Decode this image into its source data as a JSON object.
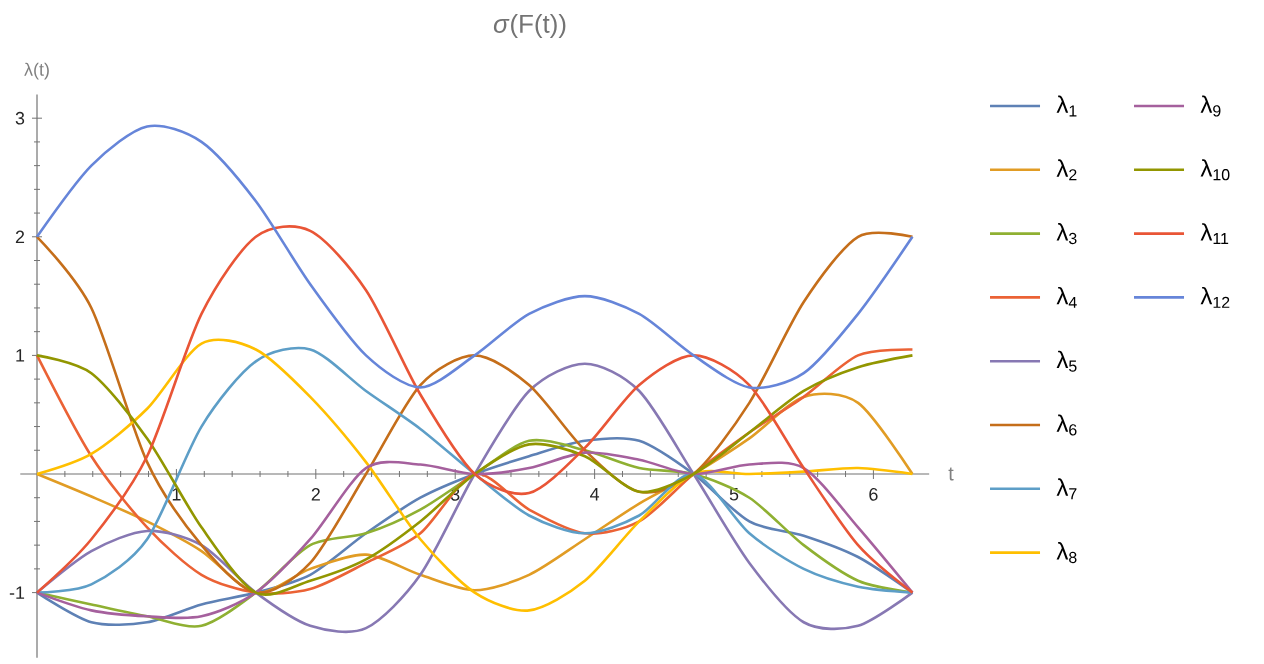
{
  "chart_data": {
    "type": "line",
    "title": "*σ*(F(t))",
    "xlabel": "t",
    "ylabel": "λ(t)",
    "xlim": [
      -0.12,
      6.4
    ],
    "ylim": [
      -1.55,
      3.2
    ],
    "xticks": [
      {
        "value": 0,
        "label": null
      },
      1,
      2,
      3,
      4,
      5,
      6
    ],
    "yticks": [
      -1,
      {
        "value": 0,
        "label": null
      },
      1,
      2,
      3
    ],
    "legend": "right",
    "x": [
      0,
      0.39,
      0.79,
      1.18,
      1.57,
      1.96,
      2.36,
      2.75,
      3.14,
      3.53,
      3.93,
      4.32,
      4.71,
      5.11,
      5.5,
      5.89,
      6.28
    ],
    "series": [
      {
        "name": "λ$_{1}$",
        "color": "#5e81b5",
        "values": [
          -1,
          -1.25,
          -1.25,
          -1.1,
          -1,
          -0.85,
          -0.5,
          -0.2,
          0,
          0.15,
          0.28,
          0.28,
          0,
          -0.4,
          -0.52,
          -0.7,
          -1
        ]
      },
      {
        "name": "λ$_{2}$",
        "color": "#e19c24",
        "values": [
          0,
          -0.19,
          -0.4,
          -0.65,
          -1,
          -0.8,
          -0.68,
          -0.85,
          -0.98,
          -0.85,
          -0.55,
          -0.25,
          0,
          0.3,
          0.65,
          0.6,
          0
        ]
      },
      {
        "name": "λ$_{3}$",
        "color": "#8fb032",
        "values": [
          -1,
          -1.1,
          -1.2,
          -1.28,
          -1,
          -0.6,
          -0.5,
          -0.3,
          0,
          0.28,
          0.2,
          0.05,
          0,
          -0.2,
          -0.6,
          -0.9,
          -1
        ]
      },
      {
        "name": "λ$_{4}$",
        "color": "#eb6235",
        "values": [
          1,
          0.15,
          -0.45,
          -0.85,
          -1,
          -0.97,
          -0.75,
          -0.5,
          0,
          -0.3,
          -0.5,
          -0.4,
          0,
          0.35,
          0.65,
          1.0,
          1.05
        ]
      },
      {
        "name": "λ$_{5}$",
        "color": "#8778b3",
        "values": [
          -1,
          -0.65,
          -0.48,
          -0.6,
          -1,
          -1.28,
          -1.3,
          -0.85,
          0,
          0.7,
          0.93,
          0.7,
          0,
          -0.75,
          -1.25,
          -1.28,
          -1
        ]
      },
      {
        "name": "λ$_{6}$",
        "color": "#c56e1a",
        "values": [
          2,
          1.4,
          0.1,
          -0.6,
          -1,
          -0.75,
          0,
          0.75,
          1.0,
          0.75,
          0.2,
          -0.15,
          0,
          0.6,
          1.45,
          2.0,
          2.0
        ]
      },
      {
        "name": "λ$_{7}$",
        "color": "#5d9ec7",
        "values": [
          -1,
          -0.93,
          -0.55,
          0.4,
          0.95,
          1.05,
          0.7,
          0.38,
          0,
          -0.35,
          -0.5,
          -0.35,
          0,
          -0.5,
          -0.8,
          -0.95,
          -1
        ]
      },
      {
        "name": "λ$_{8}$",
        "color": "#ffbf00",
        "values": [
          0,
          0.17,
          0.55,
          1.1,
          1.05,
          0.65,
          0.1,
          -0.55,
          -1.0,
          -1.15,
          -0.9,
          -0.4,
          0,
          0,
          0.02,
          0.05,
          0
        ]
      },
      {
        "name": "λ$_{9}$",
        "color": "#a5609d",
        "values": [
          -1,
          -1.15,
          -1.2,
          -1.2,
          -1,
          -0.55,
          0.05,
          0.08,
          0,
          0.05,
          0.18,
          0.12,
          0,
          0.08,
          0.05,
          -0.45,
          -1
        ]
      },
      {
        "name": "λ$_{10}$",
        "color": "#929600",
        "values": [
          1,
          0.85,
          0.3,
          -0.45,
          -1,
          -0.9,
          -0.72,
          -0.4,
          0,
          0.25,
          0.15,
          -0.15,
          0,
          0.35,
          0.7,
          0.9,
          1
        ]
      },
      {
        "name": "λ$_{11}$",
        "color": "#e95536",
        "values": [
          -1,
          -0.55,
          0.15,
          1.35,
          2.0,
          2.05,
          1.55,
          0.67,
          0,
          -0.16,
          0.22,
          0.75,
          1.0,
          0.75,
          0.05,
          -0.6,
          -1
        ]
      },
      {
        "name": "λ$_{12}$",
        "color": "#6685d9",
        "values": [
          2,
          2.6,
          2.93,
          2.8,
          2.3,
          1.6,
          1.0,
          0.73,
          1.0,
          1.35,
          1.5,
          1.35,
          1.0,
          0.73,
          0.85,
          1.35,
          2.0
        ]
      }
    ]
  }
}
